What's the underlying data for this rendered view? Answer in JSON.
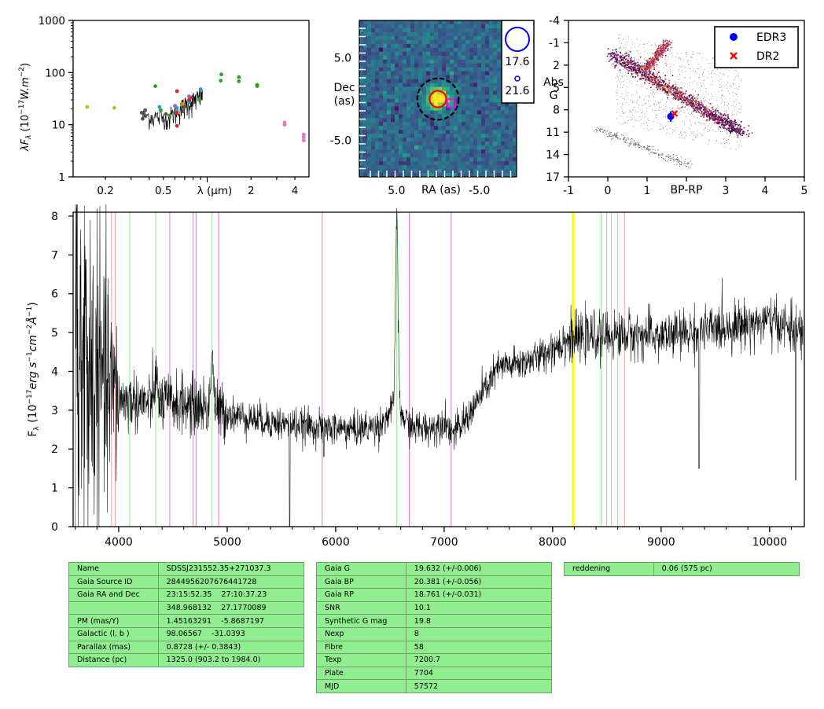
{
  "sed": {
    "ylabel_parts": [
      "λF",
      "λ",
      " (10",
      "−17",
      "W.m",
      "−2",
      ")"
    ],
    "xlabel": "λ (μm)",
    "yticks": [
      "1000",
      "100",
      "10",
      "1"
    ],
    "xticks": [
      "0.2",
      "0.5",
      "2",
      "4"
    ]
  },
  "image": {
    "ylabel_line1": "Dec",
    "ylabel_line2": "(as)",
    "xlabel": "RA (as)",
    "yticks": [
      "5.0",
      "-5.0"
    ],
    "xticks": [
      "5.0",
      "-5.0"
    ],
    "legend": [
      "17.6",
      "21.6"
    ]
  },
  "cmd": {
    "ylabel_line1": "Abs",
    "ylabel_line2": "G",
    "xlabel": "BP-RP",
    "yticks": [
      "-4",
      "-1",
      "2",
      "5",
      "8",
      "11",
      "14",
      "17"
    ],
    "xticks": [
      "-1",
      "0",
      "1",
      "2",
      "3",
      "4",
      "5"
    ],
    "legend": [
      {
        "label": "EDR3",
        "color": "#0000ff",
        "marker": "circle"
      },
      {
        "label": "DR2",
        "color": "#ff0000",
        "marker": "x"
      }
    ]
  },
  "spectrum": {
    "ylabel_parts": [
      "F",
      "λ",
      " (10",
      "−17",
      "erg s",
      "−1",
      "cm",
      "−2",
      "Å",
      "−1",
      ")"
    ],
    "yticks": [
      "0",
      "1",
      "2",
      "3",
      "4",
      "5",
      "6",
      "7",
      "8"
    ],
    "xticks": [
      "4000",
      "5000",
      "6000",
      "7000",
      "8000",
      "9000",
      "10000"
    ]
  },
  "table1": [
    [
      "Name",
      "SDSSJ231552.35+271037.3"
    ],
    [
      "Gaia Source ID",
      "2844956207676441728"
    ],
    [
      "Gaia RA and Dec",
      "23:15:52.35    27:10:37.23"
    ],
    [
      "",
      "348.968132    27.1770089"
    ],
    [
      "PM (mas/Y)",
      "1.45163291    -5.8687197"
    ],
    [
      "Galactic (l, b )",
      "98.06567    -31.0393"
    ],
    [
      "Parallax (mas)",
      "0.8728 (+/- 0.3843)"
    ],
    [
      "Distance (pc)",
      "1325.0 (903.2 to 1984.0)"
    ]
  ],
  "table2": [
    [
      "Gaia G",
      "19.632 (+/-0.006)"
    ],
    [
      "Gaia BP",
      "20.381 (+/-0.056)"
    ],
    [
      "Gaia RP",
      "18.761 (+/-0.031)"
    ],
    [
      "SNR",
      "10.1"
    ],
    [
      "Synthetic G mag",
      "19.8"
    ],
    [
      "Nexp",
      "8"
    ],
    [
      "Fibre",
      "58"
    ],
    [
      "Texp",
      "7200.7"
    ],
    [
      "Plate",
      "7704"
    ],
    [
      "MJD",
      "57572"
    ]
  ],
  "table3": [
    [
      "reddening",
      "0.06 (575 pc)"
    ]
  ],
  "colors": {
    "table_bg": "#90ee90",
    "edr3": "#0000ff",
    "dr2": "#ff0000",
    "line_red": "#ff9999",
    "line_green": "#90ee90",
    "line_violet": "#dd77dd",
    "line_yellow": "#ffff00"
  },
  "chart_data": [
    {
      "type": "scatter",
      "name": "sed",
      "xscale": "log",
      "yscale": "log",
      "xlim": [
        0.12,
        5.0
      ],
      "ylim": [
        1,
        1000
      ],
      "series": [
        {
          "color": "#bcbd22",
          "points": [
            [
              0.15,
              22
            ],
            [
              0.23,
              21
            ]
          ]
        },
        {
          "color": "#555555",
          "points": [
            [
              0.355,
              17
            ],
            [
              0.36,
              13
            ],
            [
              0.37,
              15
            ],
            [
              0.375,
              19
            ],
            [
              0.5,
              12
            ],
            [
              0.52,
              16
            ],
            [
              0.6,
              17
            ],
            [
              0.68,
              18
            ],
            [
              0.7,
              22
            ]
          ]
        },
        {
          "color": "#1fa0d0",
          "points": [
            [
              0.47,
              22
            ],
            [
              0.62,
              21
            ],
            [
              0.75,
              27
            ],
            [
              0.9,
              48
            ]
          ]
        },
        {
          "color": "#d62728",
          "points": [
            [
              0.62,
              9.5
            ],
            [
              0.62,
              17
            ],
            [
              0.62,
              44
            ],
            [
              0.75,
              30
            ],
            [
              0.77,
              33
            ]
          ]
        },
        {
          "color": "#2ca02c",
          "points": [
            [
              0.44,
              55
            ],
            [
              0.48,
              19
            ],
            [
              0.55,
              15
            ],
            [
              0.67,
              25
            ],
            [
              0.88,
              30
            ],
            [
              1.24,
              70
            ],
            [
              1.25,
              92
            ],
            [
              1.65,
              68
            ],
            [
              1.65,
              82
            ],
            [
              2.2,
              58
            ],
            [
              2.2,
              55
            ]
          ]
        },
        {
          "color": "#e377c2",
          "points": [
            [
              3.4,
              11
            ],
            [
              3.4,
              10
            ],
            [
              4.6,
              6.5
            ],
            [
              4.6,
              5.8
            ],
            [
              4.6,
              5.0
            ]
          ]
        },
        {
          "color": "#9467bd",
          "points": [
            [
              0.6,
              23
            ],
            [
              0.75,
              35
            ]
          ]
        },
        {
          "color": "#ff7f0e",
          "points": [
            [
              0.68,
              25
            ]
          ]
        }
      ]
    },
    {
      "type": "heatmap",
      "name": "image",
      "xlim": [
        9.5,
        -9.5
      ],
      "ylim": [
        -9.5,
        9.5
      ],
      "source_x": 0.0,
      "source_y": 0.0,
      "markers": [
        {
          "shape": "circle",
          "style": "dashed",
          "color": "#000000",
          "x": 0.0,
          "y": 0.0,
          "r": 2.5
        },
        {
          "shape": "circle",
          "color": "#ff0000",
          "x": 0.0,
          "y": 0.0,
          "r": 1.0
        },
        {
          "shape": "square",
          "color": "#ff00ff",
          "x": -1.6,
          "y": -0.5
        }
      ]
    },
    {
      "type": "scatter",
      "name": "cmd",
      "xlim": [
        -1,
        5
      ],
      "ylim": [
        17,
        -4
      ],
      "points": [
        {
          "label": "EDR3",
          "x": 1.6,
          "y": 8.9,
          "err_y": 0.7
        },
        {
          "label": "DR2",
          "x": 1.7,
          "y": 8.5
        }
      ]
    },
    {
      "type": "line",
      "name": "spectrum",
      "xlim": [
        3580,
        10320
      ],
      "ylim": [
        0,
        8.1
      ],
      "continuum_knots": [
        [
          3600,
          4.3
        ],
        [
          3800,
          3.8
        ],
        [
          4000,
          3.3
        ],
        [
          4200,
          3.2
        ],
        [
          4500,
          3.2
        ],
        [
          4800,
          3.05
        ],
        [
          5200,
          2.8
        ],
        [
          5500,
          2.65
        ],
        [
          5900,
          2.55
        ],
        [
          6200,
          2.5
        ],
        [
          6400,
          2.6
        ],
        [
          6520,
          3.0
        ],
        [
          6600,
          2.9
        ],
        [
          6700,
          2.55
        ],
        [
          6900,
          2.55
        ],
        [
          7000,
          2.75
        ],
        [
          7080,
          2.4
        ],
        [
          7150,
          2.55
        ],
        [
          7300,
          3.2
        ],
        [
          7500,
          4.1
        ],
        [
          7700,
          4.2
        ],
        [
          7900,
          4.4
        ],
        [
          8100,
          4.8
        ],
        [
          8400,
          4.9
        ],
        [
          8700,
          4.95
        ],
        [
          9000,
          4.9
        ],
        [
          9300,
          5.0
        ],
        [
          9600,
          5.15
        ],
        [
          10000,
          5.3
        ],
        [
          10300,
          5.0
        ]
      ],
      "emission": [
        [
          6563,
          7.9
        ],
        [
          4861,
          4.5
        ],
        [
          4340,
          3.9
        ]
      ],
      "absorption": [
        [
          5577,
          0.0
        ],
        [
          5890,
          1.8
        ],
        [
          9350,
          1.5
        ],
        [
          10240,
          1.2
        ]
      ],
      "vlines": [
        {
          "x": 3934,
          "color": "red"
        },
        {
          "x": 3969,
          "color": "red"
        },
        {
          "x": 4102,
          "color": "green"
        },
        {
          "x": 4341,
          "color": "green"
        },
        {
          "x": 4861,
          "color": "green"
        },
        {
          "x": 6563,
          "color": "green"
        },
        {
          "x": 8498,
          "color": "red"
        },
        {
          "x": 8542,
          "color": "red"
        },
        {
          "x": 8662,
          "color": "red"
        },
        {
          "x": 8446,
          "color": "green"
        },
        {
          "x": 8598,
          "color": "green"
        },
        {
          "x": 4471,
          "color": "violet"
        },
        {
          "x": 4686,
          "color": "violet"
        },
        {
          "x": 4713,
          "color": "violet"
        },
        {
          "x": 4922,
          "color": "violet"
        },
        {
          "x": 5876,
          "color": "violet"
        },
        {
          "x": 6678,
          "color": "violet"
        },
        {
          "x": 7065,
          "color": "violet"
        },
        {
          "x": 8183,
          "color": "yellow"
        },
        {
          "x": 8195,
          "color": "yellow"
        }
      ]
    }
  ]
}
